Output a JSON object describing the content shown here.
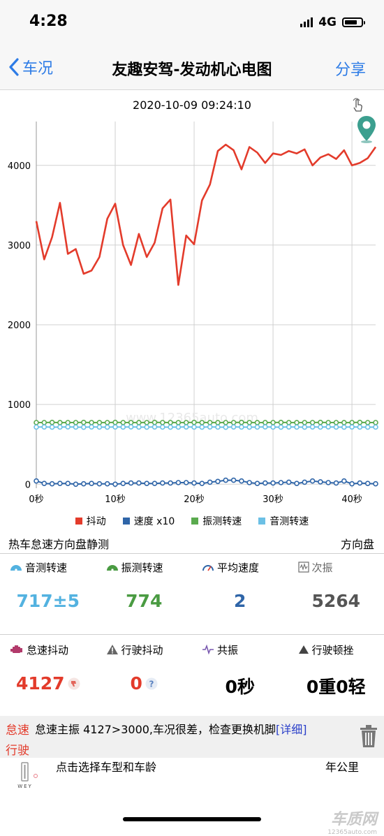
{
  "status": {
    "time": "4:28",
    "network": "4G",
    "battery_level": 0.75
  },
  "nav": {
    "back_label": "车况",
    "title": "友趣安驾-发动机心电图",
    "share_label": "分享"
  },
  "chart_data": {
    "type": "line",
    "title": "2020-10-09 09:24:10",
    "xlabel": "",
    "ylabel": "",
    "xlim": [
      0,
      43
    ],
    "ylim": [
      -50,
      4550
    ],
    "x_ticks": [
      0,
      10,
      20,
      30,
      40
    ],
    "x_tick_labels": [
      "0秒",
      "10秒",
      "20秒",
      "30秒",
      "40秒"
    ],
    "y_ticks": [
      0,
      1000,
      2000,
      3000,
      4000
    ],
    "y_tick_labels": [
      "0",
      "1000",
      "2000",
      "3000",
      "4000"
    ],
    "grid": true,
    "legend_position": "bottom",
    "x": [
      0,
      1,
      2,
      3,
      4,
      5,
      6,
      7,
      8,
      9,
      10,
      11,
      12,
      13,
      14,
      15,
      16,
      17,
      18,
      19,
      20,
      21,
      22,
      23,
      24,
      25,
      26,
      27,
      28,
      29,
      30,
      31,
      32,
      33,
      34,
      35,
      36,
      37,
      38,
      39,
      40,
      41,
      42,
      43
    ],
    "series": [
      {
        "name": "抖动",
        "color": "#e33b2b",
        "values": [
          3300,
          2820,
          3100,
          3530,
          2890,
          2950,
          2640,
          2680,
          2850,
          3330,
          3520,
          3000,
          2750,
          3140,
          2850,
          3030,
          3460,
          3570,
          2500,
          3120,
          3010,
          3560,
          3760,
          4180,
          4260,
          4190,
          3950,
          4230,
          4160,
          4030,
          4150,
          4130,
          4180,
          4150,
          4200,
          4000,
          4100,
          4140,
          4080,
          4190,
          4000,
          4030,
          4090,
          4230
        ]
      },
      {
        "name": "速度 x10",
        "color": "#2f65a8",
        "values": [
          40,
          10,
          5,
          10,
          10,
          0,
          5,
          10,
          5,
          5,
          0,
          10,
          15,
          15,
          10,
          10,
          15,
          15,
          20,
          20,
          15,
          10,
          25,
          35,
          50,
          50,
          40,
          20,
          10,
          15,
          15,
          20,
          25,
          10,
          25,
          40,
          30,
          20,
          15,
          40,
          5,
          15,
          10,
          5
        ]
      },
      {
        "name": "振测转速",
        "color": "#5aaa4e",
        "values": [
          774,
          774,
          775,
          773,
          774,
          774,
          775,
          774,
          773,
          774,
          775,
          774,
          774,
          773,
          774,
          775,
          774,
          774,
          773,
          774,
          775,
          774,
          774,
          773,
          774,
          774,
          775,
          774,
          773,
          774,
          774,
          775,
          774,
          773,
          774,
          774,
          775,
          774,
          774,
          773,
          774,
          775,
          774,
          774
        ]
      },
      {
        "name": "音测转速",
        "color": "#6cc0e5",
        "values": [
          717,
          718,
          716,
          717,
          719,
          717,
          715,
          718,
          717,
          716,
          718,
          717,
          719,
          717,
          716,
          718,
          717,
          716,
          717,
          718,
          717,
          716,
          718,
          717,
          715,
          718,
          717,
          716,
          717,
          719,
          717,
          716,
          718,
          717,
          716,
          718,
          717,
          719,
          717,
          716,
          718,
          717,
          716,
          717
        ]
      }
    ],
    "watermark": "www.12365auto.com"
  },
  "test": {
    "mode_label": "热车怠速方向盘静测",
    "right_label": "方向盘"
  },
  "metrics_row1": [
    {
      "label": "音测转速",
      "value": "717±5",
      "color": "#53b2e0",
      "icon": "gauge-icon"
    },
    {
      "label": "振测转速",
      "value": "774",
      "color": "#4a9b42",
      "icon": "gauge-icon"
    },
    {
      "label": "平均速度",
      "value": "2",
      "color": "#2f65a8",
      "icon": "speedometer-icon"
    },
    {
      "label": "次振",
      "value": "5264",
      "color": "#555555",
      "icon": "wave-box-icon"
    }
  ],
  "metrics_row2": [
    {
      "label": "怠速抖动",
      "value": "4127",
      "color": "#e33b2b",
      "icon": "engine-icon"
    },
    {
      "label": "行驶抖动",
      "value": "0",
      "color": "#e33b2b",
      "icon": "warning-icon"
    },
    {
      "label": "共振",
      "value": "0秒",
      "color": "#000000",
      "icon": "pulse-icon"
    },
    {
      "label": "行驶顿挫",
      "value": "0重0轻",
      "color": "#000000",
      "icon": "triangle-icon"
    }
  ],
  "alert": {
    "tag_idle": "怠速",
    "message": "怠速主振 4127>3000,车况很差，检查更换机脚",
    "detail_link": "[详细]",
    "tag_driving": "行驶"
  },
  "select": {
    "prompt": "点击选择车型和车龄",
    "unit": "年公里"
  },
  "logo": {
    "text": "WEY"
  },
  "brand": {
    "name": "车质网",
    "site": "12365auto.com"
  }
}
